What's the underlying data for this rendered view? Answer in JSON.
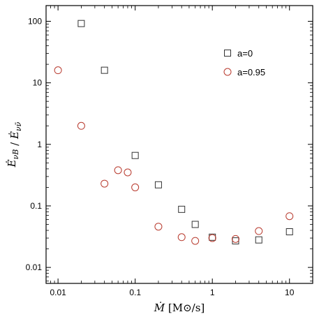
{
  "chart_data": {
    "type": "scatter",
    "x_scale": "log",
    "y_scale": "log",
    "xlim": [
      0.007,
      20
    ],
    "ylim": [
      0.0055,
      180
    ],
    "grid": false,
    "legend_position": "top-right",
    "xlabel": "Ṁ [M⊙/s]",
    "ylabel": "Ė_{νB} / Ė_{νν̄}",
    "x_ticks": [
      0.01,
      0.1,
      1,
      10
    ],
    "x_tick_labels": [
      "0.01",
      "0.1",
      "1",
      "10"
    ],
    "y_ticks": [
      0.01,
      0.1,
      1,
      10,
      100
    ],
    "y_tick_labels": [
      "0.01",
      "0.1",
      "1",
      "10",
      "100"
    ],
    "series": [
      {
        "name": "a=0",
        "marker": "square",
        "color": "#333333",
        "points": [
          {
            "x": 0.02,
            "y": 92
          },
          {
            "x": 0.04,
            "y": 16
          },
          {
            "x": 0.1,
            "y": 0.66
          },
          {
            "x": 0.2,
            "y": 0.22
          },
          {
            "x": 0.4,
            "y": 0.088
          },
          {
            "x": 0.6,
            "y": 0.05
          },
          {
            "x": 1,
            "y": 0.031
          },
          {
            "x": 2,
            "y": 0.027
          },
          {
            "x": 4,
            "y": 0.028
          },
          {
            "x": 10,
            "y": 0.038
          }
        ]
      },
      {
        "name": "a=0.95",
        "marker": "circle",
        "color": "#b83a2e",
        "points": [
          {
            "x": 0.01,
            "y": 16
          },
          {
            "x": 0.02,
            "y": 2.0
          },
          {
            "x": 0.04,
            "y": 0.23
          },
          {
            "x": 0.06,
            "y": 0.38
          },
          {
            "x": 0.08,
            "y": 0.35
          },
          {
            "x": 0.1,
            "y": 0.2
          },
          {
            "x": 0.2,
            "y": 0.046
          },
          {
            "x": 0.4,
            "y": 0.031
          },
          {
            "x": 0.6,
            "y": 0.027
          },
          {
            "x": 1,
            "y": 0.03
          },
          {
            "x": 2,
            "y": 0.029
          },
          {
            "x": 4,
            "y": 0.039
          },
          {
            "x": 10,
            "y": 0.068
          }
        ]
      }
    ]
  }
}
